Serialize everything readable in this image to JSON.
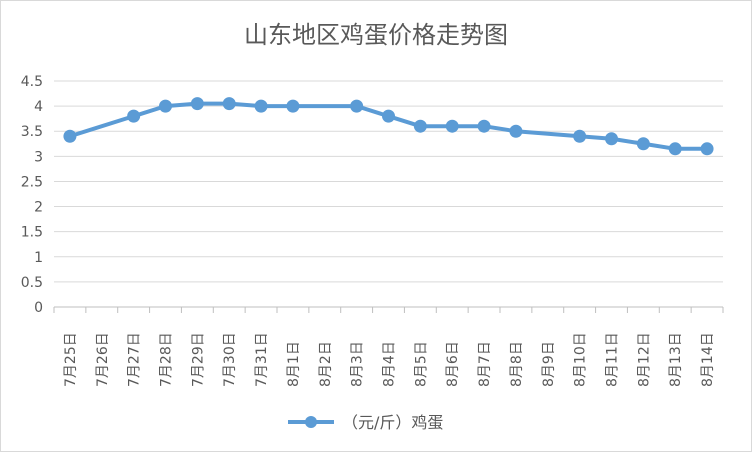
{
  "chart_data": {
    "type": "line",
    "title": "山东地区鸡蛋价格走势图",
    "categories": [
      "7月25日",
      "7月26日",
      "7月27日",
      "7月28日",
      "7月29日",
      "7月30日",
      "7月31日",
      "8月1日",
      "8月2日",
      "8月3日",
      "8月4日",
      "8月5日",
      "8月6日",
      "8月7日",
      "8月8日",
      "8月9日",
      "8月10日",
      "8月11日",
      "8月12日",
      "8月13日",
      "8月14日"
    ],
    "series": [
      {
        "name": "（元/斤）鸡蛋",
        "values": [
          3.4,
          null,
          3.8,
          4.0,
          4.05,
          4.05,
          4.0,
          4.0,
          null,
          4.0,
          3.8,
          3.6,
          3.6,
          3.6,
          3.5,
          null,
          3.4,
          3.35,
          3.25,
          3.15,
          3.15
        ],
        "color": "#5b9bd5"
      }
    ],
    "yticks": [
      "0",
      "0.5",
      "1",
      "1.5",
      "2",
      "2.5",
      "3",
      "3.5",
      "4",
      "4.5"
    ],
    "ylim": [
      0,
      4.5
    ],
    "grid": true,
    "legend_position": "bottom"
  }
}
